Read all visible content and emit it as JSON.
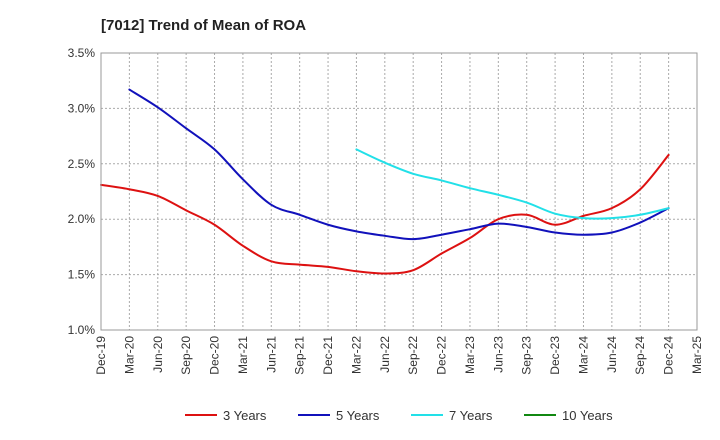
{
  "chart_data": {
    "type": "line",
    "title": "[7012]  Trend of Mean of ROA",
    "xlabel": "",
    "ylabel": "",
    "ylim": [
      1.0,
      3.5
    ],
    "yticks": [
      1.0,
      1.5,
      2.0,
      2.5,
      3.0,
      3.5
    ],
    "ytick_labels": [
      "1.0%",
      "1.5%",
      "2.0%",
      "2.5%",
      "3.0%",
      "3.5%"
    ],
    "categories": [
      "Dec-19",
      "Mar-20",
      "Jun-20",
      "Sep-20",
      "Dec-20",
      "Mar-21",
      "Jun-21",
      "Sep-21",
      "Dec-21",
      "Mar-22",
      "Jun-22",
      "Sep-22",
      "Dec-22",
      "Mar-23",
      "Jun-23",
      "Sep-23",
      "Dec-23",
      "Mar-24",
      "Jun-24",
      "Sep-24",
      "Dec-24",
      "Mar-25"
    ],
    "grid": "y-dashed",
    "legend_position": "bottom",
    "series": [
      {
        "name": "3 Years",
        "color": "#dd1111",
        "values": [
          2.31,
          2.27,
          2.21,
          2.08,
          1.95,
          1.76,
          1.62,
          1.59,
          1.57,
          1.53,
          1.51,
          1.54,
          1.69,
          1.83,
          2.0,
          2.04,
          1.95,
          2.03,
          2.1,
          2.27,
          2.58,
          null
        ]
      },
      {
        "name": "5 Years",
        "color": "#1111bb",
        "values": [
          null,
          3.17,
          3.01,
          2.82,
          2.63,
          2.36,
          2.13,
          2.04,
          1.95,
          1.89,
          1.85,
          1.82,
          1.86,
          1.91,
          1.96,
          1.93,
          1.88,
          1.86,
          1.88,
          1.97,
          2.1,
          null
        ]
      },
      {
        "name": "7 Years",
        "color": "#22e0e8",
        "values": [
          null,
          null,
          null,
          null,
          null,
          null,
          null,
          null,
          null,
          2.63,
          2.51,
          2.41,
          2.35,
          2.28,
          2.22,
          2.15,
          2.05,
          2.01,
          2.01,
          2.04,
          2.1,
          null
        ]
      },
      {
        "name": "10 Years",
        "color": "#118811",
        "values": [
          null,
          null,
          null,
          null,
          null,
          null,
          null,
          null,
          null,
          null,
          null,
          null,
          null,
          null,
          null,
          null,
          null,
          null,
          null,
          null,
          null,
          null
        ]
      }
    ]
  }
}
